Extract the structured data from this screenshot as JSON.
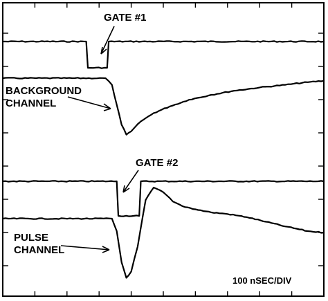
{
  "chart_data": {
    "type": "line",
    "title": "",
    "xlabel": "100 nSEC/DIV",
    "ylabel": "",
    "x_unit": "nSEC",
    "x_range": [
      0,
      1000
    ],
    "grid": false,
    "annotations": [
      {
        "text": "GATE #1",
        "target": "gate-1"
      },
      {
        "text": "BACKGROUND",
        "line2": "CHANNEL",
        "target": "background-channel"
      },
      {
        "text": "GATE #2",
        "target": "gate-2"
      },
      {
        "text": "PULSE",
        "line2": "CHANNEL",
        "target": "pulse-channel"
      }
    ],
    "series": [
      {
        "id": "gate-1",
        "x": [
          0,
          260,
          265,
          325,
          330,
          1000
        ],
        "y": [
          0,
          0,
          -1,
          -1,
          0,
          0
        ]
      },
      {
        "id": "background-channel",
        "x": [
          0,
          320,
          340,
          355,
          370,
          385,
          400,
          430,
          470,
          520,
          580,
          650,
          720,
          800,
          880,
          950,
          1000
        ],
        "y": [
          0,
          0,
          -0.2,
          -0.8,
          -1.4,
          -1.7,
          -1.6,
          -1.3,
          -1.05,
          -0.85,
          -0.65,
          -0.5,
          -0.38,
          -0.28,
          -0.2,
          -0.12,
          -0.08
        ]
      },
      {
        "id": "gate-2",
        "x": [
          0,
          355,
          360,
          425,
          430,
          1000
        ],
        "y": [
          0,
          0,
          -1,
          -1,
          0,
          0
        ]
      },
      {
        "id": "pulse-channel",
        "x": [
          0,
          340,
          355,
          370,
          385,
          400,
          420,
          445,
          470,
          500,
          530,
          560,
          600,
          650,
          700,
          760,
          820,
          880,
          950,
          1000
        ],
        "y": [
          0,
          0,
          -0.4,
          -1.4,
          -1.9,
          -1.7,
          -0.9,
          0.6,
          1.0,
          0.85,
          0.55,
          0.4,
          0.3,
          0.2,
          0.15,
          0.05,
          -0.1,
          -0.25,
          -0.4,
          -0.45
        ]
      }
    ]
  }
}
